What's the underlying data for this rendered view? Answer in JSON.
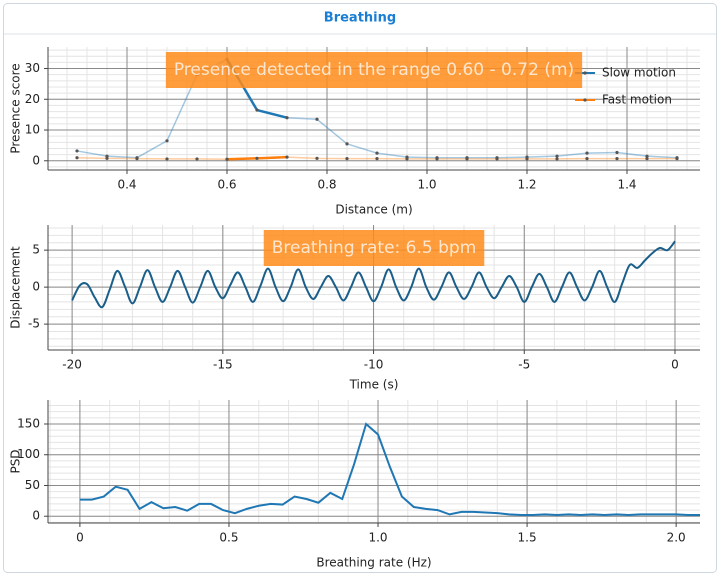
{
  "header": {
    "title": "Breathing"
  },
  "chart_data": [
    {
      "type": "line",
      "x_label": "Distance (m)",
      "y_label": "Presence score",
      "annotation": "Presence detected in the range 0.60 - 0.72 (m)",
      "xlim": [
        0.242,
        1.546
      ],
      "ylim": [
        -3,
        37
      ],
      "xticks": [
        0.4,
        0.6,
        0.8,
        {
          "value": 1,
          "label": "1.0"
        },
        1.2,
        1.4
      ],
      "yticks": [
        0,
        10,
        20,
        30
      ],
      "grid": true,
      "minor_divisions": 5,
      "markers": true,
      "legend": "upper right",
      "highlight_range": [
        0.6,
        0.72
      ],
      "x": [
        0.3,
        0.36,
        0.42,
        0.48,
        0.54,
        0.6,
        0.66,
        0.72,
        0.78,
        0.84,
        0.9,
        0.96,
        1.02,
        1.08,
        1.14,
        1.2,
        1.26,
        1.32,
        1.38,
        1.44,
        1.5
      ],
      "series": [
        {
          "name": "Slow motion",
          "color": "#1f77b4",
          "values": [
            3.2,
            1.5,
            1.0,
            6.5,
            28,
            33,
            16.5,
            14,
            13.5,
            5.5,
            2.5,
            1.2,
            1.0,
            1.0,
            1.0,
            1.2,
            1.5,
            2.5,
            2.7,
            1.5,
            1.0
          ]
        },
        {
          "name": "Fast motion",
          "color": "#ff7f0e",
          "values": [
            1.0,
            0.8,
            0.7,
            0.6,
            0.6,
            0.5,
            0.8,
            1.2,
            0.8,
            0.7,
            0.7,
            0.6,
            0.6,
            0.6,
            0.6,
            0.6,
            0.6,
            0.7,
            0.7,
            0.7,
            0.7
          ]
        }
      ]
    },
    {
      "type": "line",
      "x_label": "Time (s)",
      "y_label": "Displacement",
      "annotation": "Breathing rate: 6.5 bpm",
      "xlim": [
        -20.8,
        0.83
      ],
      "ylim": [
        -8.5,
        8.4
      ],
      "xticks": [
        -20,
        -15,
        -10,
        -5,
        0
      ],
      "yticks": [
        -5,
        0,
        5
      ],
      "grid": true,
      "minor_divisions": 5,
      "smooth": true,
      "color": "#1a5e8a",
      "x": [
        -20,
        -19.75,
        -19.5,
        -19.25,
        -19,
        -18.75,
        -18.5,
        -18.25,
        -18,
        -17.75,
        -17.5,
        -17.25,
        -17,
        -16.75,
        -16.5,
        -16.25,
        -16,
        -15.75,
        -15.5,
        -15.25,
        -15,
        -14.75,
        -14.5,
        -14.25,
        -14,
        -13.75,
        -13.5,
        -13.25,
        -13,
        -12.75,
        -12.5,
        -12.25,
        -12,
        -11.75,
        -11.5,
        -11.25,
        -11,
        -10.75,
        -10.5,
        -10.25,
        -10,
        -9.75,
        -9.5,
        -9.25,
        -9,
        -8.75,
        -8.5,
        -8.25,
        -8,
        -7.75,
        -7.5,
        -7.25,
        -7,
        -6.75,
        -6.5,
        -6.25,
        -6,
        -5.75,
        -5.5,
        -5.25,
        -5,
        -4.75,
        -4.5,
        -4.25,
        -4,
        -3.75,
        -3.5,
        -3.25,
        -3,
        -2.75,
        -2.5,
        -2.25,
        -2,
        -1.75,
        -1.5,
        -1.25,
        -1,
        -0.75,
        -0.5,
        -0.25,
        0
      ],
      "values": [
        -1.8,
        0.2,
        0.4,
        -1.4,
        -2.7,
        -0.3,
        2.2,
        0.1,
        -2.2,
        0,
        2.3,
        0,
        -2.0,
        0,
        2.2,
        0,
        -2.1,
        0,
        2.2,
        0,
        -1.5,
        0.3,
        2.0,
        0,
        -2.0,
        0.2,
        2.5,
        0,
        -1.9,
        0,
        2.4,
        0,
        -1.6,
        0,
        1.5,
        0,
        -1.8,
        0,
        2.0,
        0,
        -1.9,
        0,
        2.4,
        0,
        -1.8,
        0,
        2.5,
        0,
        -1.7,
        0,
        2.0,
        0,
        -1.6,
        0,
        2.0,
        0,
        -1.5,
        0,
        1.5,
        0,
        -2.0,
        0,
        1.8,
        0,
        -2.0,
        0,
        2.0,
        0,
        -1.8,
        0,
        2.2,
        0,
        -2.0,
        0.5,
        3.0,
        2.6,
        3.6,
        4.6,
        5.3,
        5.0,
        6.2
      ]
    },
    {
      "type": "line",
      "x_label": "Breathing rate (Hz)",
      "y_label": "PSD",
      "xlim": [
        -0.107,
        2.08
      ],
      "ylim": [
        -11,
        189
      ],
      "xticks": [
        0,
        0.5,
        {
          "value": 1,
          "label": "1.0"
        },
        1.5,
        {
          "value": 2,
          "label": "2.0"
        }
      ],
      "yticks": [
        0,
        50,
        100,
        150
      ],
      "grid": true,
      "minor_divisions": 5,
      "color": "#1f77b4",
      "x": [
        0,
        0.04,
        0.08,
        0.12,
        0.16,
        0.2,
        0.24,
        0.28,
        0.32,
        0.36,
        0.4,
        0.44,
        0.48,
        0.52,
        0.56,
        0.6,
        0.64,
        0.68,
        0.72,
        0.76,
        0.8,
        0.84,
        0.88,
        0.92,
        0.96,
        1.0,
        1.04,
        1.08,
        1.12,
        1.16,
        1.2,
        1.24,
        1.28,
        1.32,
        1.36,
        1.4,
        1.44,
        1.48,
        1.52,
        1.56,
        1.6,
        1.64,
        1.68,
        1.72,
        1.76,
        1.8,
        1.84,
        1.88,
        1.92,
        1.96,
        2.0,
        2.04,
        2.08
      ],
      "values": [
        27,
        27,
        32,
        48,
        43,
        12,
        23,
        13,
        15,
        9,
        20,
        20,
        10,
        5,
        12,
        17,
        20,
        19,
        32,
        28,
        22,
        38,
        28,
        85,
        150,
        133,
        80,
        32,
        15,
        12,
        10,
        3,
        7,
        7,
        6,
        5,
        3,
        2,
        2,
        3,
        2,
        3,
        2,
        3,
        2,
        3,
        2,
        3,
        3,
        3,
        3,
        2,
        2
      ]
    }
  ]
}
